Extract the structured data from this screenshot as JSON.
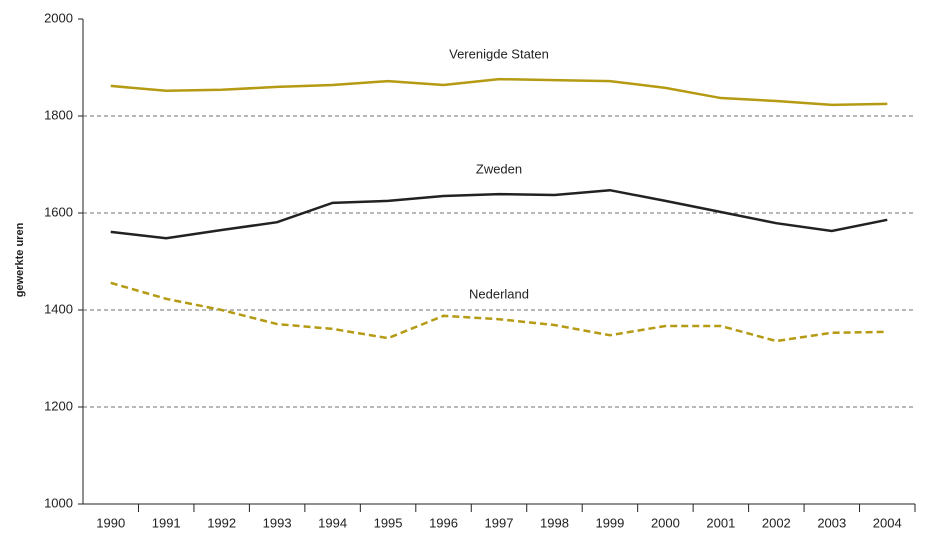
{
  "chart_data": {
    "type": "line",
    "y_label": "gewerkte uren",
    "categories": [
      "1990",
      "1991",
      "1992",
      "1993",
      "1994",
      "1995",
      "1996",
      "1997",
      "1998",
      "1999",
      "2000",
      "2001",
      "2002",
      "2003",
      "2004"
    ],
    "series": [
      {
        "name": "Verenigde Staten",
        "color": "#b59a13",
        "dashed": false,
        "values": [
          1862,
          1852,
          1854,
          1860,
          1864,
          1872,
          1864,
          1876,
          1874,
          1872,
          1858,
          1837,
          1831,
          1823,
          1825
        ]
      },
      {
        "name": "Zweden",
        "color": "#222222",
        "dashed": false,
        "values": [
          1561,
          1548,
          1565,
          1581,
          1621,
          1625,
          1635,
          1639,
          1637,
          1647,
          1625,
          1602,
          1579,
          1563,
          1586
        ]
      },
      {
        "name": "Nederland",
        "color": "#b59a13",
        "dashed": true,
        "values": [
          1456,
          1423,
          1400,
          1371,
          1361,
          1342,
          1388,
          1381,
          1369,
          1348,
          1367,
          1367,
          1336,
          1353,
          1355
        ]
      }
    ],
    "ylim": [
      1000,
      2000
    ],
    "yticks": [
      1000,
      1200,
      1400,
      1600,
      1800,
      2000
    ],
    "grid": true
  }
}
